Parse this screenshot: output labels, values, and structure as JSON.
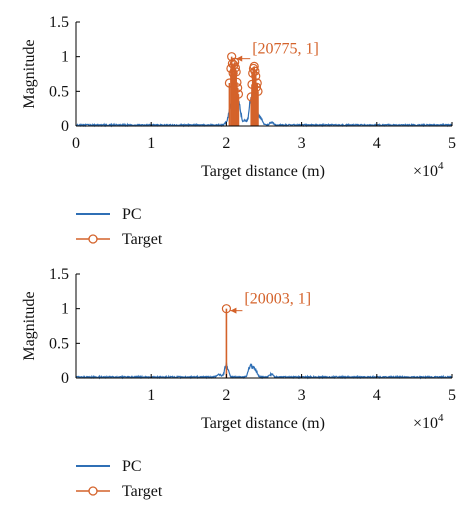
{
  "colors": {
    "pc": "#2f6fb5",
    "target": "#d4622a",
    "axis": "#000000",
    "text": "#111111"
  },
  "chart_data": [
    {
      "type": "line",
      "ylabel": "Magnitude",
      "xlabel": "Target distance (m)",
      "x_multiplier": "×10",
      "x_multiplier_exp": "4",
      "xlim": [
        0,
        5
      ],
      "ylim": [
        0,
        1.5
      ],
      "xticks": [
        "0",
        "1",
        "2",
        "3",
        "4",
        "5"
      ],
      "xtick_values": [
        0,
        1,
        2,
        3,
        4,
        5
      ],
      "yticks": [
        "0",
        "0.5",
        "1",
        "1.5"
      ],
      "ytick_values": [
        0,
        0.5,
        1,
        1.5
      ],
      "grid": false,
      "legend_position": "below",
      "series": [
        {
          "name": "PC",
          "style": "line",
          "color": "#2f6fb5",
          "noise_level": 0.02,
          "features": [
            {
              "x": 2.02,
              "y": 0.1
            },
            {
              "x": 2.07,
              "y": 0.4
            },
            {
              "x": 2.12,
              "y": 0.45
            },
            {
              "x": 2.17,
              "y": 0.3
            },
            {
              "x": 2.25,
              "y": 0.08
            },
            {
              "x": 2.33,
              "y": 0.45
            },
            {
              "x": 2.38,
              "y": 0.5
            },
            {
              "x": 2.45,
              "y": 0.15
            },
            {
              "x": 2.6,
              "y": 0.05
            }
          ]
        },
        {
          "name": "Target",
          "style": "stem",
          "color": "#d4622a",
          "points": [
            {
              "x": 2.04,
              "y": 0.62
            },
            {
              "x": 2.06,
              "y": 0.83
            },
            {
              "x": 2.07,
              "y": 1.0
            },
            {
              "x": 2.08,
              "y": 0.9
            },
            {
              "x": 2.09,
              "y": 0.76
            },
            {
              "x": 2.1,
              "y": 0.88
            },
            {
              "x": 2.11,
              "y": 0.92
            },
            {
              "x": 2.12,
              "y": 0.84
            },
            {
              "x": 2.13,
              "y": 0.78
            },
            {
              "x": 2.14,
              "y": 0.63
            },
            {
              "x": 2.15,
              "y": 0.55
            },
            {
              "x": 2.16,
              "y": 0.46
            },
            {
              "x": 2.33,
              "y": 0.42
            },
            {
              "x": 2.34,
              "y": 0.6
            },
            {
              "x": 2.35,
              "y": 0.76
            },
            {
              "x": 2.36,
              "y": 0.83
            },
            {
              "x": 2.37,
              "y": 0.86
            },
            {
              "x": 2.38,
              "y": 0.79
            },
            {
              "x": 2.39,
              "y": 0.72
            },
            {
              "x": 2.4,
              "y": 0.56
            },
            {
              "x": 2.41,
              "y": 0.62
            },
            {
              "x": 2.42,
              "y": 0.5
            }
          ]
        }
      ],
      "annotation": {
        "text": "[20775, 1]",
        "x": 2.0775,
        "y": 1.0
      }
    },
    {
      "type": "line",
      "ylabel": "Magnitude",
      "xlabel": "Target distance (m)",
      "x_multiplier": "×10",
      "x_multiplier_exp": "4",
      "xlim": [
        0,
        5
      ],
      "ylim": [
        0,
        1.5
      ],
      "xticks": [
        "1",
        "2",
        "3",
        "4",
        "5"
      ],
      "xtick_values": [
        1,
        2,
        3,
        4,
        5
      ],
      "yticks": [
        "0",
        "0.5",
        "1",
        "1.5"
      ],
      "ytick_values": [
        0,
        0.5,
        1,
        1.5
      ],
      "grid": false,
      "legend_position": "below",
      "series": [
        {
          "name": "PC",
          "style": "line",
          "color": "#2f6fb5",
          "noise_level": 0.02,
          "features": [
            {
              "x": 2.0,
              "y": 0.22
            },
            {
              "x": 2.32,
              "y": 0.2
            },
            {
              "x": 2.38,
              "y": 0.15
            },
            {
              "x": 1.9,
              "y": 0.05
            },
            {
              "x": 2.6,
              "y": 0.05
            }
          ]
        },
        {
          "name": "Target",
          "style": "stem",
          "color": "#d4622a",
          "points": [
            {
              "x": 2.0003,
              "y": 1.0
            }
          ]
        }
      ],
      "annotation": {
        "text": "[20003, 1]",
        "x": 2.0003,
        "y": 1.0
      }
    }
  ],
  "legends": [
    {
      "items": [
        {
          "label": "PC",
          "marker": "line"
        },
        {
          "label": "Target",
          "marker": "line-circle"
        }
      ]
    },
    {
      "items": [
        {
          "label": "PC",
          "marker": "line"
        },
        {
          "label": "Target",
          "marker": "line-circle"
        }
      ]
    }
  ]
}
